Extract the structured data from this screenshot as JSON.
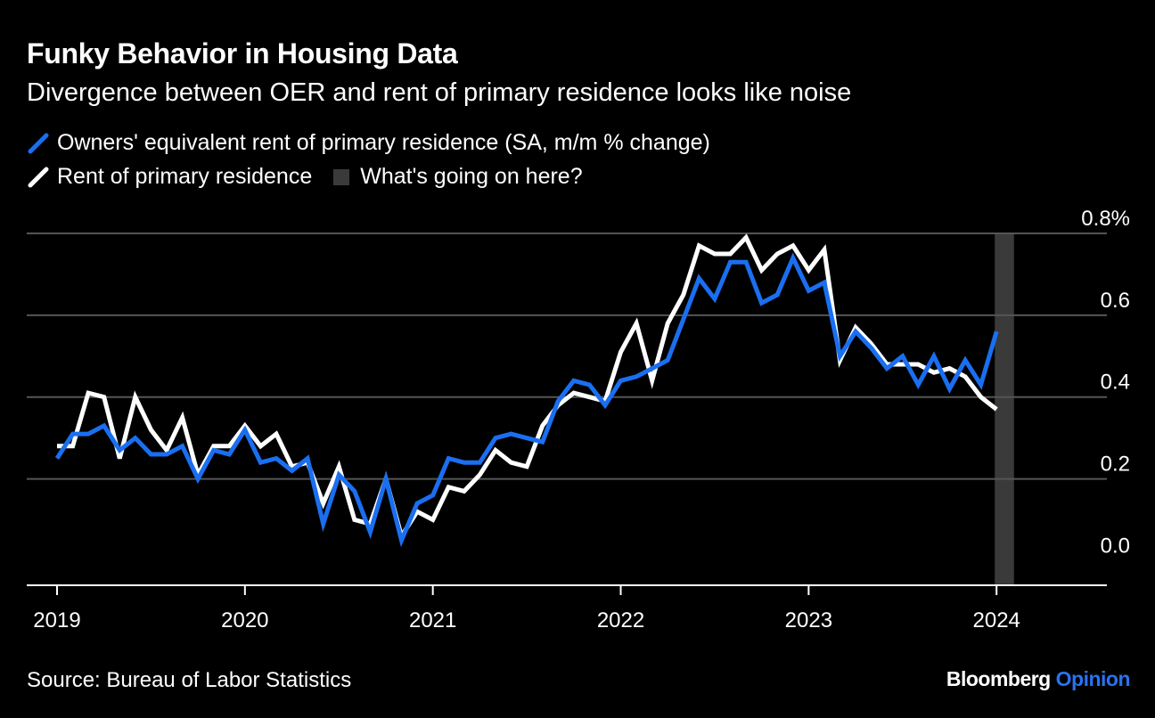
{
  "title": "Funky Behavior in Housing Data",
  "subtitle": "Divergence between OER and rent of primary residence looks like noise",
  "legend": {
    "oer": "Owners' equivalent rent of primary residence (SA, m/m % change)",
    "rent": "Rent of primary residence",
    "shade": "What's going on here?"
  },
  "source": "Source: Bureau of Labor Statistics",
  "brand": {
    "name": "Bloomberg",
    "suffix": "Opinion"
  },
  "colors": {
    "oer": "#1a6ff0",
    "rent": "#ffffff",
    "shade": "#3a3a3a",
    "grid": "#555555"
  },
  "chart_data": {
    "type": "line",
    "x_start": "2019-01",
    "x_label_years": [
      "2019",
      "2020",
      "2021",
      "2022",
      "2023",
      "2024"
    ],
    "y_ticks": [
      "0.0",
      "0.2",
      "0.4",
      "0.6",
      "0.8%"
    ],
    "y_tick_values": [
      0,
      0.2,
      0.4,
      0.6,
      0.8
    ],
    "ylim": [
      -0.06,
      0.8
    ],
    "grid": true,
    "shaded_range": [
      "2024-01",
      "2024-02"
    ],
    "series": [
      {
        "name": "Owners' equivalent rent of primary residence (SA, m/m % change)",
        "key": "oer",
        "values": [
          0.25,
          0.31,
          0.31,
          0.33,
          0.27,
          0.3,
          0.26,
          0.26,
          0.28,
          0.2,
          0.27,
          0.26,
          0.32,
          0.24,
          0.25,
          0.22,
          0.25,
          0.09,
          0.21,
          0.17,
          0.07,
          0.2,
          0.05,
          0.14,
          0.16,
          0.25,
          0.24,
          0.24,
          0.3,
          0.31,
          0.3,
          0.29,
          0.39,
          0.44,
          0.43,
          0.38,
          0.44,
          0.45,
          0.47,
          0.49,
          0.59,
          0.69,
          0.64,
          0.73,
          0.73,
          0.63,
          0.65,
          0.74,
          0.66,
          0.68,
          0.5,
          0.56,
          0.52,
          0.47,
          0.5,
          0.43,
          0.5,
          0.42,
          0.49,
          0.43,
          0.56
        ]
      },
      {
        "name": "Rent of primary residence",
        "key": "rent",
        "values": [
          0.28,
          0.28,
          0.41,
          0.4,
          0.25,
          0.4,
          0.32,
          0.27,
          0.35,
          0.21,
          0.28,
          0.28,
          0.33,
          0.28,
          0.31,
          0.23,
          0.24,
          0.14,
          0.23,
          0.1,
          0.09,
          0.2,
          0.06,
          0.12,
          0.1,
          0.18,
          0.17,
          0.21,
          0.27,
          0.24,
          0.23,
          0.33,
          0.38,
          0.41,
          0.4,
          0.39,
          0.51,
          0.58,
          0.44,
          0.58,
          0.65,
          0.77,
          0.75,
          0.75,
          0.79,
          0.71,
          0.75,
          0.77,
          0.71,
          0.76,
          0.49,
          0.57,
          0.53,
          0.48,
          0.48,
          0.48,
          0.46,
          0.47,
          0.45,
          0.4,
          0.37
        ]
      }
    ]
  }
}
